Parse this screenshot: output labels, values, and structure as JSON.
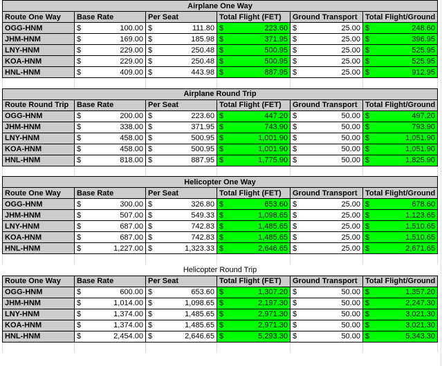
{
  "currency": "$",
  "colors": {
    "highlight_green": "#00ff00",
    "header_gray": "#cccccc",
    "grid_border": "#000000"
  },
  "tables": [
    {
      "title": "Airplane One Way",
      "title_bold": true,
      "headers": [
        "Route One Way",
        "Base Rate",
        "Per Seat",
        "Total Flight (FET)",
        "Ground Transport",
        "Total Flight/Ground"
      ],
      "rows": [
        [
          "OGG-HNM",
          "100.00",
          "111.80",
          "223.60",
          "25.00",
          "248.60"
        ],
        [
          "JHM-HNM",
          "169.00",
          "185.98",
          "371.95",
          "25.00",
          "396.95"
        ],
        [
          "LNY-HNM",
          "229.00",
          "250.48",
          "500.95",
          "25.00",
          "525.95"
        ],
        [
          "KOA-HNM",
          "229.00",
          "250.48",
          "500.95",
          "25.00",
          "525.95"
        ],
        [
          "HNL-HNM",
          "409.00",
          "443.98",
          "887.95",
          "25.00",
          "912.95"
        ]
      ]
    },
    {
      "title": "Airplane Round Trip",
      "title_bold": true,
      "headers": [
        "Route Round Trip",
        "Base Rate",
        "Per Seat",
        "Total Flight (FET)",
        "Ground Transport",
        "Total Flight/Ground"
      ],
      "rows": [
        [
          "OGG-HNM",
          "200.00",
          "223.60",
          "447.20",
          "50.00",
          "497.20"
        ],
        [
          "JHM-HNM",
          "338.00",
          "371.95",
          "743.90",
          "50.00",
          "793.90"
        ],
        [
          "LNY-HNM",
          "458.00",
          "500.95",
          "1,001.90",
          "50.00",
          "1,051.90"
        ],
        [
          "KOA-HNM",
          "458.00",
          "500.95",
          "1,001.90",
          "50.00",
          "1,051.90"
        ],
        [
          "HNL-HNM",
          "818.00",
          "887.95",
          "1,775.90",
          "50.00",
          "1,825.90"
        ]
      ]
    },
    {
      "title": "Helicopter One Way",
      "title_bold": true,
      "headers": [
        "Route One Way",
        "Base Rate",
        "Per Seat",
        "Total Flight (FET)",
        "Ground Transport",
        "Total Flight/Ground"
      ],
      "rows": [
        [
          "OGG-HNM",
          "300.00",
          "326.80",
          "653.60",
          "25.00",
          "678.60"
        ],
        [
          "JHM-HNM",
          "507.00",
          "549.33",
          "1,098.65",
          "25.00",
          "1,123.65"
        ],
        [
          "LNY-HNM",
          "687.00",
          "742.83",
          "1,485.65",
          "25.00",
          "1,510.65"
        ],
        [
          "KOA-HNM",
          "687.00",
          "742.83",
          "1,485.65",
          "25.00",
          "1,510.65"
        ],
        [
          "HNL-HNM",
          "1,227.00",
          "1,323.33",
          "2,646.65",
          "25.00",
          "2,671.65"
        ]
      ]
    },
    {
      "title": "Helicopter Round Trip",
      "title_bold": false,
      "headers": [
        "Route One Way",
        "Base Rate",
        "Per Seat",
        "Total Flight (FET)",
        "Ground Transport",
        "Total Flight/Ground"
      ],
      "rows": [
        [
          "OGG-HNM",
          "600.00",
          "653.60",
          "1,307.20",
          "50.00",
          "1,357.20"
        ],
        [
          "JHM-HNM",
          "1,014.00",
          "1,098.65",
          "2,197.30",
          "50.00",
          "2,247.30"
        ],
        [
          "LNY-HNM",
          "1,374.00",
          "1,485.65",
          "2,971.30",
          "50.00",
          "3,021.30"
        ],
        [
          "KOA-HNM",
          "1,374.00",
          "1,485.65",
          "2,971.30",
          "50.00",
          "3,021.30"
        ],
        [
          "HNL-HNM",
          "2,454.00",
          "2,646.65",
          "5,293.30",
          "50.00",
          "5,343.30"
        ]
      ]
    }
  ]
}
